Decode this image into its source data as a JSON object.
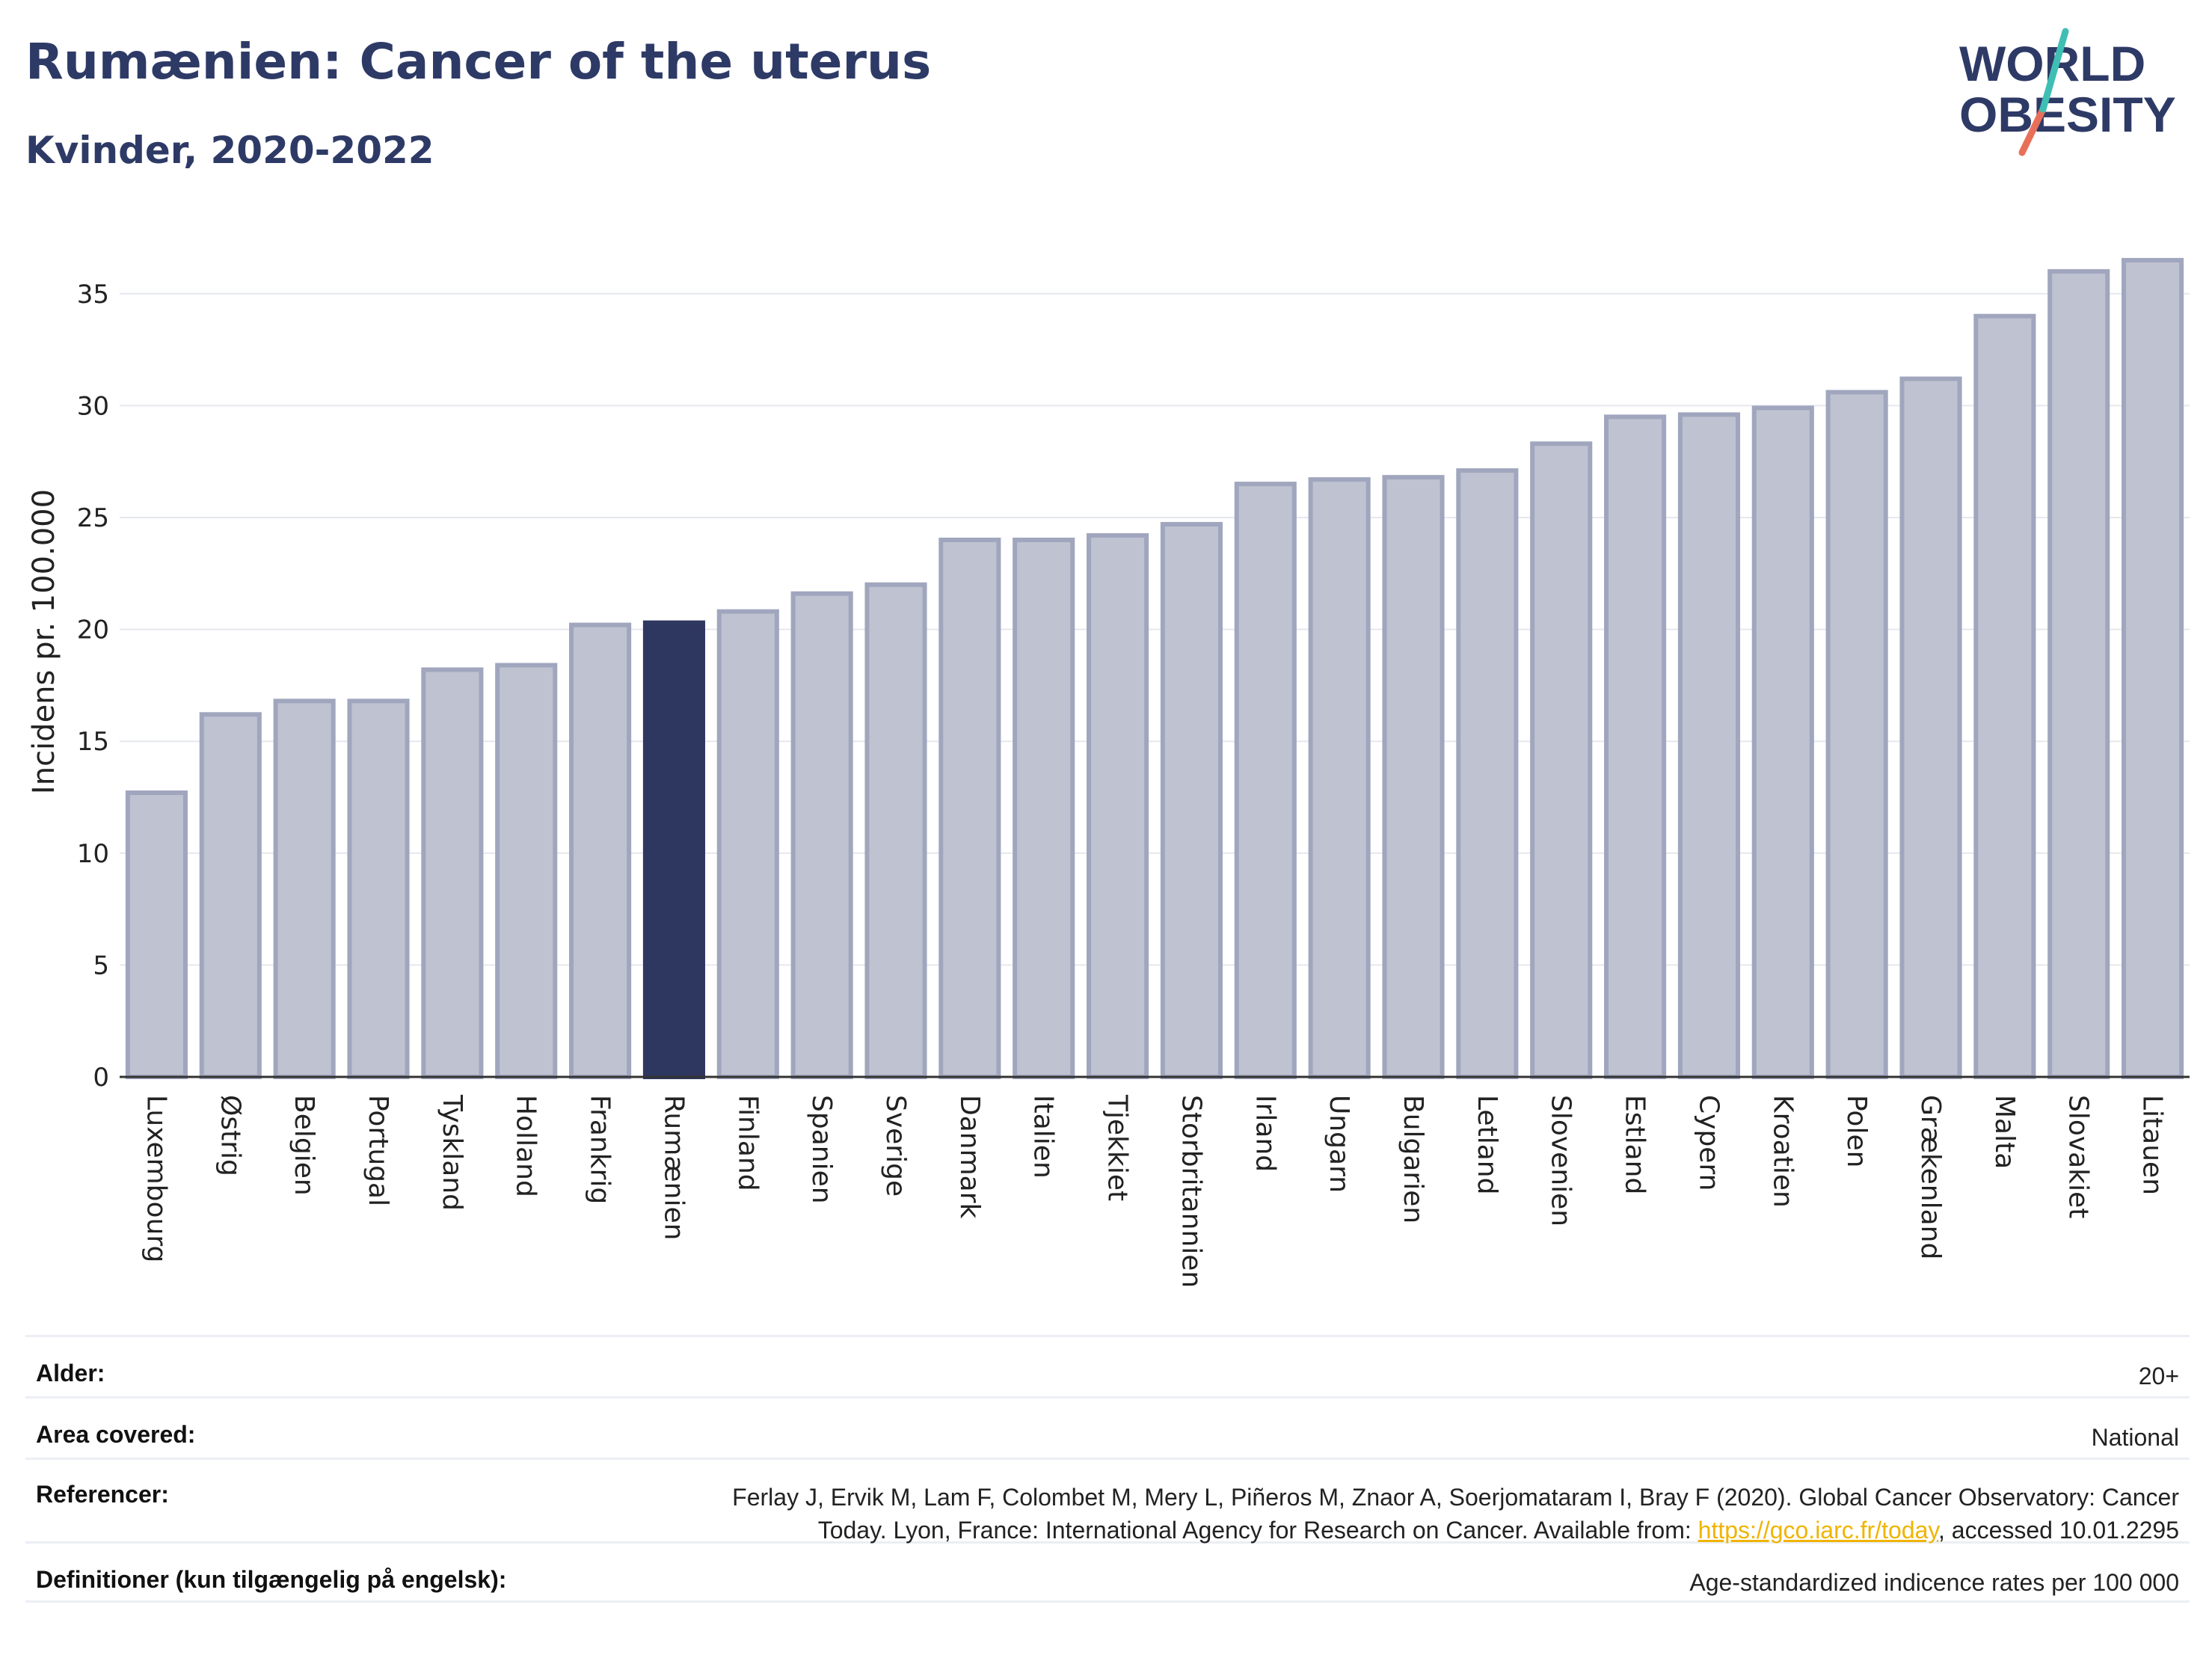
{
  "header": {
    "title": "Rumænien: Cancer of the uterus",
    "subtitle": "Kvinder, 2020-2022"
  },
  "logo": {
    "line1": "WORLD",
    "line2": "OBESITY"
  },
  "chart_data": {
    "type": "bar",
    "categories": [
      "Luxembourg",
      "Østrig",
      "Belgien",
      "Portugal",
      "Tyskland",
      "Holland",
      "Frankrig",
      "Rumænien",
      "Finland",
      "Spanien",
      "Sverige",
      "Danmark",
      "Italien",
      "Tjekkiet",
      "Storbritannien",
      "Irland",
      "Ungarn",
      "Bulgarien",
      "Letland",
      "Slovenien",
      "Estland",
      "Cypern",
      "Kroatien",
      "Polen",
      "Grækenland",
      "Malta",
      "Slovakiet",
      "Litauen"
    ],
    "values": [
      12.7,
      16.2,
      16.8,
      16.8,
      18.2,
      18.4,
      20.2,
      20.3,
      20.8,
      21.6,
      22.0,
      24.0,
      24.0,
      24.2,
      24.7,
      26.5,
      26.7,
      26.8,
      27.1,
      28.3,
      29.5,
      29.6,
      29.9,
      30.6,
      31.2,
      34.0,
      36.0,
      36.5
    ],
    "highlight": "Rumænien",
    "ylabel": "Incidens pr. 100.000",
    "yticks": [
      0,
      5,
      10,
      15,
      20,
      25,
      30,
      35
    ],
    "ylim": [
      0,
      37.5
    ],
    "grid": true,
    "colors": {
      "bar": "#bfc2d0",
      "bar_edge": "#a0a6bd",
      "highlight": "#2e3760",
      "grid": "#e6e8f0"
    }
  },
  "footer": {
    "rows": [
      {
        "label": "Alder:",
        "value": "20+"
      },
      {
        "label": "Area covered:",
        "value": "National"
      },
      {
        "label": "Referencer:",
        "value_line1": "Ferlay J, Ervik M, Lam F, Colombet M, Mery L, Piñeros M, Znaor A, Soerjomataram I, Bray F (2020). Global Cancer Observatory: Cancer",
        "value_pre": "Today. Lyon, France: International Agency for Research on Cancer. Available from: ",
        "link": "https://gco.iarc.fr/today",
        "value_post": ", accessed 10.01.2295"
      },
      {
        "label": "Definitioner (kun tilgængelig på engelsk):",
        "value": "Age-standardized indicence rates per 100 000"
      }
    ]
  }
}
